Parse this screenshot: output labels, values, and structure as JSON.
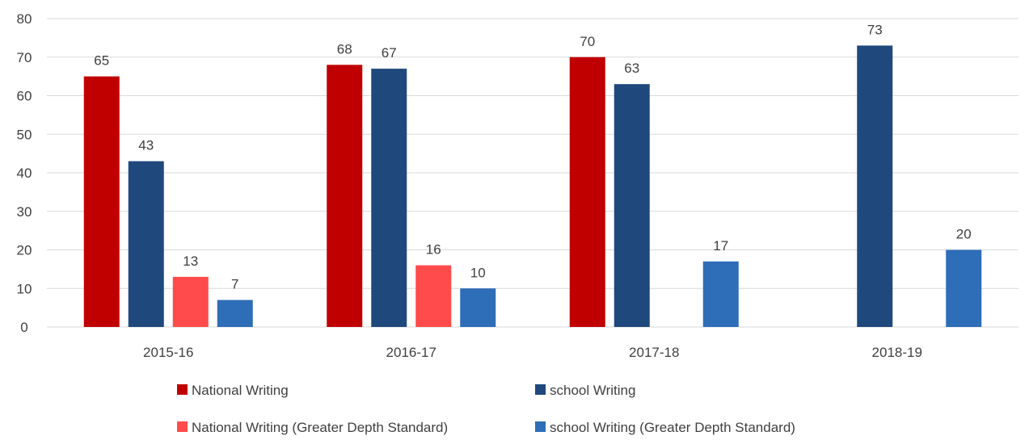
{
  "chart_data": {
    "type": "bar",
    "categories": [
      "2015-16",
      "2016-17",
      "2017-18",
      "2018-19"
    ],
    "series": [
      {
        "name": "National Writing",
        "color": "#C00000",
        "values": [
          65,
          68,
          70,
          null
        ]
      },
      {
        "name": "school Writing",
        "color": "#1F497D",
        "values": [
          43,
          67,
          63,
          73
        ]
      },
      {
        "name": "National Writing (Greater Depth Standard)",
        "color": "#FF4B4B",
        "values": [
          13,
          16,
          null,
          null
        ]
      },
      {
        "name": "school Writing (Greater Depth Standard)",
        "color": "#2E6DB7",
        "values": [
          7,
          10,
          17,
          20
        ]
      }
    ],
    "y_ticks": [
      "0",
      "10",
      "20",
      "30",
      "40",
      "50",
      "60",
      "70",
      "80"
    ],
    "ylim": [
      0,
      80
    ],
    "grid": true,
    "legend_position": "bottom",
    "title": "",
    "xlabel": "",
    "ylabel": ""
  },
  "colors": {
    "gridline": "#D9D9D9",
    "text": "#404040"
  }
}
